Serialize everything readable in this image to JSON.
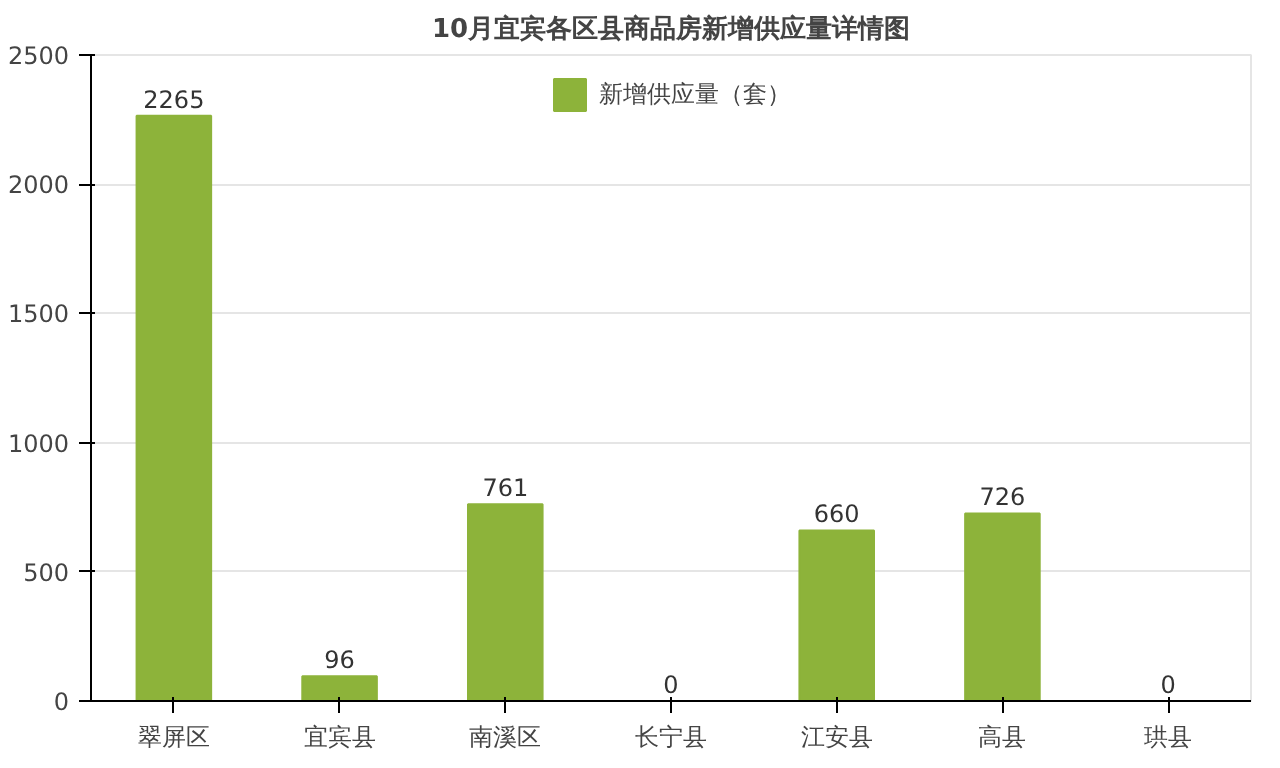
{
  "chart_data": {
    "type": "bar",
    "title": "10月宜宾各区县商品房新增供应量详情图",
    "categories": [
      "翠屏区",
      "宜宾县",
      "南溪区",
      "长宁县",
      "江安县",
      "高县",
      "珙县"
    ],
    "series": [
      {
        "name": "新增供应量（套）",
        "color": "#8db33a",
        "values": [
          2265,
          96,
          761,
          0,
          660,
          726,
          0
        ]
      }
    ],
    "ylim": [
      0,
      2500
    ],
    "yticks": [
      0,
      500,
      1000,
      1500,
      2000,
      2500
    ],
    "grid": "y",
    "legend": "top",
    "data_labels": true
  }
}
